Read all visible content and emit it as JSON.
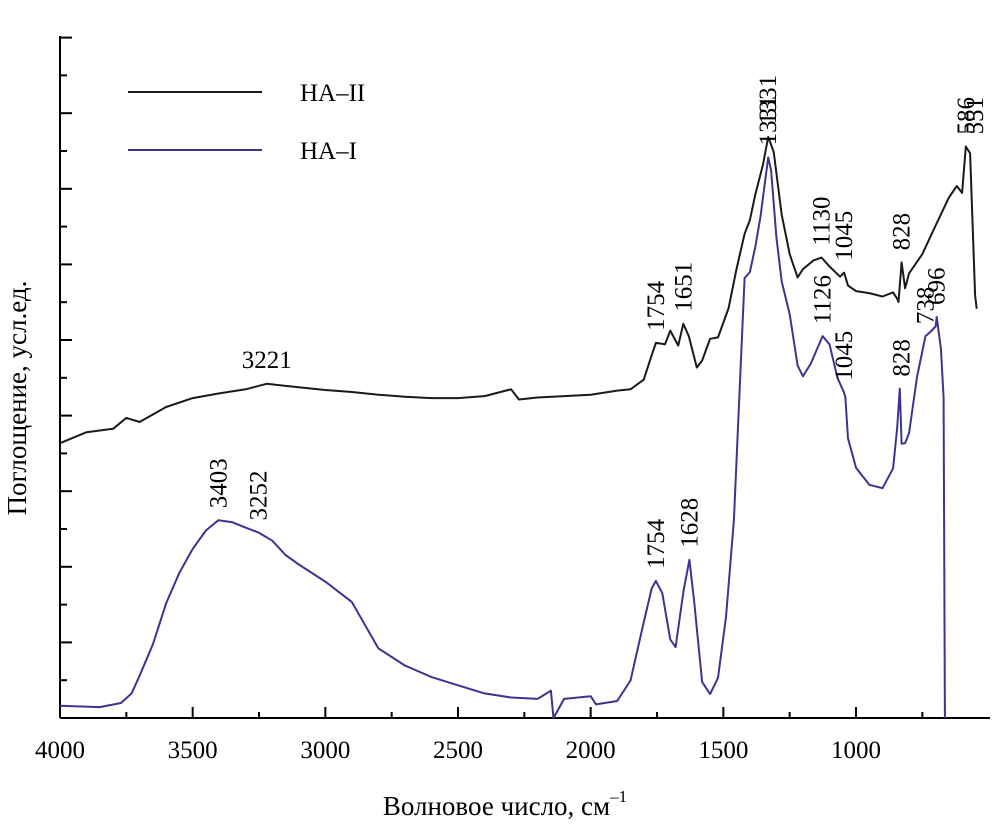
{
  "chart_data": {
    "type": "line",
    "xlabel": "Волновое число, см",
    "xlabel_sup": "–1",
    "ylabel": "Поглощение, усл.ед.",
    "xlim": [
      4000,
      540
    ],
    "x_reversed": true,
    "x_ticks": [
      4000,
      3500,
      3000,
      2500,
      2000,
      1500,
      1000
    ],
    "x_tick_labels": [
      "4000",
      "3500",
      "3000",
      "2500",
      "2000",
      "1500",
      "1000"
    ],
    "y_tick_labels_shown": false,
    "grid": false,
    "legend_position": "top-left",
    "colors": {
      "HA-II": "#1a1a1a",
      "HA-I": "#3b3591"
    },
    "series": [
      {
        "name": "HA–II",
        "color": "#1a1a1a",
        "points": [
          [
            4000,
            0.403
          ],
          [
            3900,
            0.419
          ],
          [
            3800,
            0.424
          ],
          [
            3750,
            0.44
          ],
          [
            3700,
            0.434
          ],
          [
            3600,
            0.456
          ],
          [
            3500,
            0.469
          ],
          [
            3400,
            0.476
          ],
          [
            3300,
            0.482
          ],
          [
            3221,
            0.49
          ],
          [
            3150,
            0.487
          ],
          [
            3000,
            0.481
          ],
          [
            2900,
            0.478
          ],
          [
            2800,
            0.474
          ],
          [
            2700,
            0.471
          ],
          [
            2600,
            0.469
          ],
          [
            2500,
            0.469
          ],
          [
            2400,
            0.472
          ],
          [
            2300,
            0.482
          ],
          [
            2270,
            0.467
          ],
          [
            2200,
            0.47
          ],
          [
            2000,
            0.474
          ],
          [
            1900,
            0.48
          ],
          [
            1850,
            0.482
          ],
          [
            1800,
            0.496
          ],
          [
            1770,
            0.532
          ],
          [
            1754,
            0.55
          ],
          [
            1720,
            0.548
          ],
          [
            1700,
            0.568
          ],
          [
            1670,
            0.546
          ],
          [
            1651,
            0.578
          ],
          [
            1630,
            0.56
          ],
          [
            1600,
            0.514
          ],
          [
            1580,
            0.524
          ],
          [
            1550,
            0.556
          ],
          [
            1520,
            0.558
          ],
          [
            1480,
            0.601
          ],
          [
            1450,
            0.659
          ],
          [
            1420,
            0.71
          ],
          [
            1400,
            0.73
          ],
          [
            1380,
            0.767
          ],
          [
            1350,
            0.812
          ],
          [
            1331,
            0.852
          ],
          [
            1310,
            0.83
          ],
          [
            1280,
            0.738
          ],
          [
            1250,
            0.68
          ],
          [
            1220,
            0.646
          ],
          [
            1200,
            0.658
          ],
          [
            1160,
            0.671
          ],
          [
            1130,
            0.675
          ],
          [
            1100,
            0.662
          ],
          [
            1060,
            0.647
          ],
          [
            1045,
            0.653
          ],
          [
            1030,
            0.634
          ],
          [
            1000,
            0.626
          ],
          [
            950,
            0.623
          ],
          [
            900,
            0.618
          ],
          [
            860,
            0.624
          ],
          [
            845,
            0.615
          ],
          [
            840,
            0.61
          ],
          [
            828,
            0.668
          ],
          [
            815,
            0.63
          ],
          [
            800,
            0.652
          ],
          [
            750,
            0.68
          ],
          [
            700,
            0.722
          ],
          [
            650,
            0.763
          ],
          [
            620,
            0.78
          ],
          [
            600,
            0.77
          ],
          [
            586,
            0.838
          ],
          [
            570,
            0.828
          ],
          [
            560,
            0.72
          ],
          [
            551,
            0.62
          ],
          [
            545,
            0.6
          ]
        ]
      },
      {
        "name": "HA–I",
        "color": "#3b3591",
        "points": [
          [
            4000,
            0.018
          ],
          [
            3850,
            0.016
          ],
          [
            3770,
            0.022
          ],
          [
            3730,
            0.036
          ],
          [
            3700,
            0.062
          ],
          [
            3650,
            0.108
          ],
          [
            3600,
            0.168
          ],
          [
            3550,
            0.213
          ],
          [
            3500,
            0.248
          ],
          [
            3450,
            0.275
          ],
          [
            3403,
            0.29
          ],
          [
            3350,
            0.287
          ],
          [
            3300,
            0.279
          ],
          [
            3252,
            0.272
          ],
          [
            3200,
            0.26
          ],
          [
            3150,
            0.239
          ],
          [
            3100,
            0.225
          ],
          [
            3000,
            0.2
          ],
          [
            2900,
            0.17
          ],
          [
            2800,
            0.102
          ],
          [
            2700,
            0.077
          ],
          [
            2600,
            0.06
          ],
          [
            2500,
            0.048
          ],
          [
            2400,
            0.036
          ],
          [
            2300,
            0.03
          ],
          [
            2200,
            0.028
          ],
          [
            2150,
            0.04
          ],
          [
            2140,
            0.0
          ],
          [
            2100,
            0.028
          ],
          [
            2000,
            0.032
          ],
          [
            1980,
            0.02
          ],
          [
            1900,
            0.025
          ],
          [
            1850,
            0.055
          ],
          [
            1800,
            0.14
          ],
          [
            1770,
            0.19
          ],
          [
            1754,
            0.201
          ],
          [
            1730,
            0.183
          ],
          [
            1700,
            0.115
          ],
          [
            1680,
            0.104
          ],
          [
            1650,
            0.186
          ],
          [
            1628,
            0.232
          ],
          [
            1610,
            0.172
          ],
          [
            1580,
            0.053
          ],
          [
            1550,
            0.035
          ],
          [
            1520,
            0.059
          ],
          [
            1490,
            0.148
          ],
          [
            1460,
            0.29
          ],
          [
            1440,
            0.47
          ],
          [
            1420,
            0.645
          ],
          [
            1400,
            0.654
          ],
          [
            1380,
            0.69
          ],
          [
            1360,
            0.735
          ],
          [
            1331,
            0.822
          ],
          [
            1320,
            0.803
          ],
          [
            1300,
            0.705
          ],
          [
            1280,
            0.64
          ],
          [
            1250,
            0.592
          ],
          [
            1220,
            0.517
          ],
          [
            1200,
            0.501
          ],
          [
            1170,
            0.52
          ],
          [
            1126,
            0.56
          ],
          [
            1100,
            0.548
          ],
          [
            1070,
            0.499
          ],
          [
            1045,
            0.477
          ],
          [
            1040,
            0.47
          ],
          [
            1030,
            0.41
          ],
          [
            1000,
            0.367
          ],
          [
            950,
            0.342
          ],
          [
            900,
            0.337
          ],
          [
            860,
            0.366
          ],
          [
            845,
            0.424
          ],
          [
            835,
            0.483
          ],
          [
            828,
            0.402
          ],
          [
            815,
            0.403
          ],
          [
            800,
            0.418
          ],
          [
            770,
            0.5
          ],
          [
            738,
            0.56
          ],
          [
            720,
            0.566
          ],
          [
            700,
            0.574
          ],
          [
            696,
            0.588
          ],
          [
            680,
            0.542
          ],
          [
            670,
            0.47
          ],
          [
            665,
            0.0
          ]
        ]
      }
    ],
    "annotations": [
      {
        "series": "HA–II",
        "text": "3221",
        "x": 3221,
        "y": 0.49,
        "rotated": false
      },
      {
        "series": "HA–II",
        "text": "1754",
        "x": 1754,
        "y": 0.55,
        "rotated": true
      },
      {
        "series": "HA–II",
        "text": "1651",
        "x": 1651,
        "y": 0.578,
        "rotated": true
      },
      {
        "series": "HA–II",
        "text": "1331",
        "x": 1331,
        "y": 0.852,
        "rotated": true
      },
      {
        "series": "HA–II",
        "text": "1130",
        "x": 1130,
        "y": 0.675,
        "rotated": true
      },
      {
        "series": "HA–II",
        "text": "1045",
        "x": 1045,
        "y": 0.653,
        "rotated": true
      },
      {
        "series": "HA–II",
        "text": "828",
        "x": 828,
        "y": 0.668,
        "rotated": true
      },
      {
        "series": "HA–II",
        "text": "586",
        "x": 586,
        "y": 0.838,
        "rotated": true
      },
      {
        "series": "HA–II",
        "text": "551",
        "x": 551,
        "y": 0.838,
        "rotated": true
      },
      {
        "series": "HA–I",
        "text": "3403",
        "x": 3403,
        "y": 0.29,
        "rotated": true
      },
      {
        "series": "HA–I",
        "text": "3252",
        "x": 3252,
        "y": 0.272,
        "rotated": true
      },
      {
        "series": "HA–I",
        "text": "1754",
        "x": 1754,
        "y": 0.201,
        "rotated": true
      },
      {
        "series": "HA–I",
        "text": "1628",
        "x": 1628,
        "y": 0.232,
        "rotated": true
      },
      {
        "series": "HA–I",
        "text": "1331",
        "x": 1331,
        "y": 0.822,
        "rotated": true
      },
      {
        "series": "HA–I",
        "text": "1126",
        "x": 1126,
        "y": 0.56,
        "rotated": true
      },
      {
        "series": "HA–I",
        "text": "1045",
        "x": 1045,
        "y": 0.477,
        "rotated": true
      },
      {
        "series": "HA–I",
        "text": "828",
        "x": 828,
        "y": 0.483,
        "rotated": true
      },
      {
        "series": "HA–I",
        "text": "738",
        "x": 738,
        "y": 0.56,
        "rotated": true
      },
      {
        "series": "HA–I",
        "text": "696",
        "x": 696,
        "y": 0.588,
        "rotated": true
      }
    ]
  }
}
